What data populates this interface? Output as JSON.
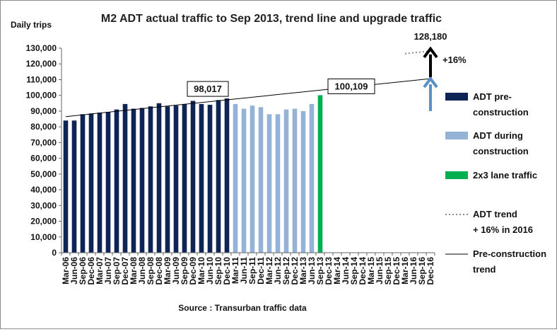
{
  "chart_data": {
    "type": "bar",
    "title": "M2 ADT actual traffic to Sep 2013, trend line and upgrade traffic",
    "ylabel": "Daily trips",
    "xlabel": "Source : Transurban traffic data",
    "ylim": [
      0,
      130000
    ],
    "ytick_step": 10000,
    "y_ticks": [
      "0",
      "10,000",
      "20,000",
      "30,000",
      "40,000",
      "50,000",
      "60,000",
      "70,000",
      "80,000",
      "90,000",
      "100,000",
      "110,000",
      "120,000",
      "130,000"
    ],
    "categories": [
      "Mar-06",
      "Jun-06",
      "Sep-06",
      "Dec-06",
      "Mar-07",
      "Jun-07",
      "Sep-07",
      "Dec-07",
      "Mar-08",
      "Jun-08",
      "Sep-08",
      "Dec-08",
      "Mar-09",
      "Jun-09",
      "Sep-09",
      "Dec-09",
      "Mar-10",
      "Jun-10",
      "Sep-10",
      "Dec-10",
      "Mar-11",
      "Jun-11",
      "Sep-11",
      "Dec-11",
      "Mar-12",
      "Jun-12",
      "Sep-12",
      "Dec-12",
      "Mar-13",
      "Jun-13",
      "Sep-13",
      "Dec-13",
      "Mar-14",
      "Jun-14",
      "Sep-14",
      "Dec-14",
      "Mar-15",
      "Jun-15",
      "Sep-15",
      "Dec-15",
      "Mar-16",
      "Jun-16",
      "Sep-16",
      "Dec-16"
    ],
    "series": [
      {
        "name": "ADT pre-construction",
        "color": "#0d2455",
        "values": [
          84000,
          84000,
          88000,
          88500,
          89000,
          89500,
          91000,
          94500,
          91500,
          92000,
          93000,
          95000,
          93000,
          93500,
          94500,
          96500,
          94500,
          94000,
          97000,
          98017,
          null,
          null,
          null,
          null,
          null,
          null,
          null,
          null,
          null,
          null,
          null,
          null,
          null,
          null,
          null,
          null,
          null,
          null,
          null,
          null,
          null,
          null,
          null,
          null
        ]
      },
      {
        "name": "ADT during construction",
        "color": "#95b3d7",
        "values": [
          null,
          null,
          null,
          null,
          null,
          null,
          null,
          null,
          null,
          null,
          null,
          null,
          null,
          null,
          null,
          null,
          null,
          null,
          null,
          null,
          94500,
          91500,
          93500,
          92500,
          88000,
          88000,
          91000,
          91500,
          90000,
          94500,
          null,
          null,
          null,
          null,
          null,
          null,
          null,
          null,
          null,
          null,
          null,
          null,
          null,
          null
        ]
      },
      {
        "name": "2x3 lane traffic",
        "color": "#00b050",
        "values": [
          null,
          null,
          null,
          null,
          null,
          null,
          null,
          null,
          null,
          null,
          null,
          null,
          null,
          null,
          null,
          null,
          null,
          null,
          null,
          null,
          null,
          null,
          null,
          null,
          null,
          null,
          null,
          null,
          null,
          null,
          100109,
          null,
          null,
          null,
          null,
          null,
          null,
          null,
          null,
          null,
          null,
          null,
          null,
          null
        ]
      }
    ],
    "trend_line": {
      "name": "Pre-construction trend",
      "from_category": "Mar-06",
      "from_value": 86500,
      "to_category": "Dec-16",
      "to_value": 110600
    },
    "adt_trend": {
      "name": "ADT trend + 16% in 2016",
      "from_category": "Mar-16",
      "from_value": 126500,
      "to_category": "Dec-16",
      "to_value": 128180
    },
    "legend_entries": [
      "ADT pre-construction",
      "ADT during construction",
      "2x3 lane traffic",
      "ADT trend + 16% in 2016",
      "Pre-construction trend"
    ],
    "legend_placement": "right",
    "annotations": {
      "pre_peak": {
        "label": "98,017",
        "category": "Dec-10",
        "value": 98017
      },
      "upgrade": {
        "label": "100,109",
        "category": "Sep-13",
        "value": 100109
      },
      "target": {
        "label": "128,180",
        "category": "Dec-16",
        "value": 128180
      },
      "increase": {
        "label": "+16%"
      }
    },
    "arrows": [
      {
        "color": "#5a8fcc",
        "category": "Dec-16",
        "from_value": 90000,
        "to_value": 110600
      },
      {
        "color": "#000000",
        "category": "Dec-16",
        "from_value": 111500,
        "to_value": 129600
      }
    ],
    "grid": false
  }
}
